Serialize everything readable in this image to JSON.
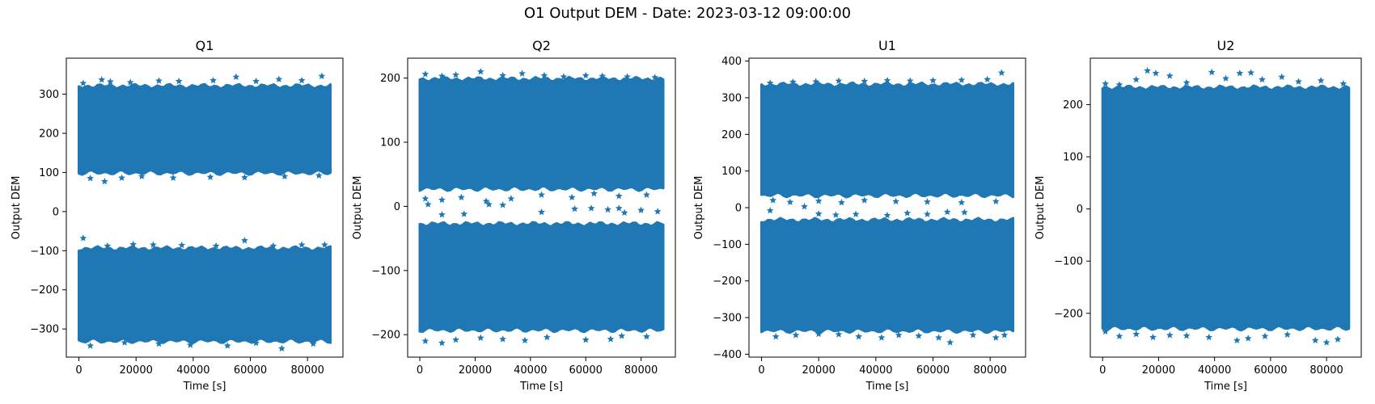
{
  "figure": {
    "suptitle": "O1 Output DEM - Date: 2023-03-12 09:00:00",
    "marker_color": "#1f77b4",
    "marker": "star"
  },
  "chart_data": [
    {
      "type": "scatter",
      "title": "Q1",
      "xlabel": "Time [s]",
      "ylabel": "Output DEM",
      "xlim": [
        -4400,
        92400
      ],
      "ylim": [
        -372,
        392
      ],
      "xticks": [
        0,
        20000,
        40000,
        60000,
        80000
      ],
      "xtick_labels": [
        "0",
        "20000",
        "40000",
        "60000",
        "80000"
      ],
      "yticks": [
        -300,
        -200,
        -100,
        0,
        100,
        200,
        300
      ],
      "ytick_labels": [
        "−300",
        "−200",
        "−100",
        "0",
        "100",
        "200",
        "300"
      ],
      "x_range": [
        0,
        88000
      ],
      "bands": [
        {
          "x_from": 0,
          "x_to": 88000,
          "y_low": 100,
          "y_high": 320
        },
        {
          "x_from": 0,
          "x_to": 88000,
          "y_low": -330,
          "y_high": -95
        }
      ],
      "outliers": [
        [
          1500,
          328
        ],
        [
          8000,
          337
        ],
        [
          11000,
          332
        ],
        [
          18000,
          330
        ],
        [
          28000,
          334
        ],
        [
          35000,
          333
        ],
        [
          47000,
          335
        ],
        [
          55000,
          344
        ],
        [
          62000,
          333
        ],
        [
          70000,
          338
        ],
        [
          78000,
          335
        ],
        [
          85000,
          346
        ],
        [
          4000,
          85
        ],
        [
          9000,
          77
        ],
        [
          15000,
          86
        ],
        [
          22000,
          90
        ],
        [
          33000,
          86
        ],
        [
          46000,
          88
        ],
        [
          58000,
          87
        ],
        [
          72000,
          90
        ],
        [
          84000,
          92
        ],
        [
          1500,
          -68
        ],
        [
          10000,
          -88
        ],
        [
          19000,
          -84
        ],
        [
          26000,
          -85
        ],
        [
          36000,
          -86
        ],
        [
          48000,
          -88
        ],
        [
          58000,
          -74
        ],
        [
          68000,
          -88
        ],
        [
          78000,
          -85
        ],
        [
          86000,
          -85
        ],
        [
          4000,
          -343
        ],
        [
          16000,
          -335
        ],
        [
          28000,
          -338
        ],
        [
          39000,
          -341
        ],
        [
          52000,
          -343
        ],
        [
          62000,
          -336
        ],
        [
          71000,
          -350
        ],
        [
          82000,
          -338
        ]
      ]
    },
    {
      "type": "scatter",
      "title": "Q2",
      "xlabel": "Time [s]",
      "ylabel": "Output DEM",
      "xlim": [
        -4400,
        92400
      ],
      "ylim": [
        -235,
        231
      ],
      "xticks": [
        0,
        20000,
        40000,
        60000,
        80000
      ],
      "xtick_labels": [
        "0",
        "20000",
        "40000",
        "60000",
        "80000"
      ],
      "yticks": [
        -200,
        -100,
        0,
        100,
        200
      ],
      "ytick_labels": [
        "−200",
        "−100",
        "0",
        "100",
        "200"
      ],
      "x_range": [
        0,
        88000
      ],
      "bands": [
        {
          "x_from": 0,
          "x_to": 88000,
          "y_low": 28,
          "y_high": 198
        },
        {
          "x_from": 0,
          "x_to": 88000,
          "y_low": -192,
          "y_high": -28
        }
      ],
      "outliers": [
        [
          2000,
          206
        ],
        [
          8000,
          203
        ],
        [
          13000,
          205
        ],
        [
          22000,
          210
        ],
        [
          30000,
          204
        ],
        [
          37000,
          207
        ],
        [
          45000,
          204
        ],
        [
          52000,
          202
        ],
        [
          60000,
          204
        ],
        [
          66000,
          203
        ],
        [
          75000,
          202
        ],
        [
          85000,
          201
        ],
        [
          2000,
          12
        ],
        [
          8000,
          10
        ],
        [
          15000,
          14
        ],
        [
          24000,
          8
        ],
        [
          33000,
          12
        ],
        [
          44000,
          18
        ],
        [
          55000,
          14
        ],
        [
          63000,
          20
        ],
        [
          72000,
          16
        ],
        [
          82000,
          18
        ],
        [
          3000,
          3
        ],
        [
          8000,
          -13
        ],
        [
          16000,
          -12
        ],
        [
          25000,
          3
        ],
        [
          30000,
          2
        ],
        [
          44000,
          -9
        ],
        [
          56000,
          -4
        ],
        [
          62000,
          -3
        ],
        [
          68000,
          -5
        ],
        [
          72000,
          -3
        ],
        [
          74000,
          -10
        ],
        [
          80000,
          -6
        ],
        [
          86000,
          -8
        ],
        [
          2000,
          -210
        ],
        [
          8000,
          -213
        ],
        [
          13000,
          -208
        ],
        [
          22000,
          -205
        ],
        [
          30000,
          -207
        ],
        [
          38000,
          -209
        ],
        [
          46000,
          -204
        ],
        [
          60000,
          -208
        ],
        [
          69000,
          -207
        ],
        [
          73000,
          -202
        ],
        [
          82000,
          -203
        ]
      ]
    },
    {
      "type": "scatter",
      "title": "U1",
      "xlabel": "Time [s]",
      "ylabel": "Output DEM",
      "xlim": [
        -4400,
        92400
      ],
      "ylim": [
        -408,
        408
      ],
      "xticks": [
        0,
        20000,
        40000,
        60000,
        80000
      ],
      "xtick_labels": [
        "0",
        "20000",
        "40000",
        "60000",
        "80000"
      ],
      "yticks": [
        -400,
        -300,
        -200,
        -100,
        0,
        100,
        200,
        300,
        400
      ],
      "ytick_labels": [
        "−400",
        "−300",
        "−200",
        "−100",
        "0",
        "100",
        "200",
        "300",
        "400"
      ],
      "x_range": [
        0,
        88000
      ],
      "bands": [
        {
          "x_from": 0,
          "x_to": 88000,
          "y_low": 35,
          "y_high": 335
        },
        {
          "x_from": 0,
          "x_to": 88000,
          "y_low": -335,
          "y_high": -35
        }
      ],
      "outliers": [
        [
          3000,
          340
        ],
        [
          11000,
          343
        ],
        [
          19000,
          344
        ],
        [
          27000,
          346
        ],
        [
          36000,
          345
        ],
        [
          44000,
          347
        ],
        [
          52000,
          346
        ],
        [
          60000,
          347
        ],
        [
          70000,
          348
        ],
        [
          79000,
          350
        ],
        [
          84000,
          368
        ],
        [
          4000,
          20
        ],
        [
          10000,
          15
        ],
        [
          20000,
          18
        ],
        [
          28000,
          14
        ],
        [
          36000,
          20
        ],
        [
          47000,
          17
        ],
        [
          58000,
          16
        ],
        [
          70000,
          14
        ],
        [
          82000,
          17
        ],
        [
          3000,
          -8
        ],
        [
          15000,
          3
        ],
        [
          20000,
          -17
        ],
        [
          26000,
          -20
        ],
        [
          33000,
          -18
        ],
        [
          44000,
          -21
        ],
        [
          51000,
          -15
        ],
        [
          58000,
          -18
        ],
        [
          65000,
          -12
        ],
        [
          71000,
          -13
        ],
        [
          5000,
          -352
        ],
        [
          12000,
          -348
        ],
        [
          20000,
          -345
        ],
        [
          27000,
          -346
        ],
        [
          34000,
          -352
        ],
        [
          42000,
          -355
        ],
        [
          48000,
          -348
        ],
        [
          55000,
          -350
        ],
        [
          62000,
          -355
        ],
        [
          66000,
          -368
        ],
        [
          74000,
          -348
        ],
        [
          82000,
          -355
        ],
        [
          85000,
          -348
        ]
      ]
    },
    {
      "type": "scatter",
      "title": "U2",
      "xlabel": "Time [s]",
      "ylabel": "Output DEM",
      "xlim": [
        -4400,
        92400
      ],
      "ylim": [
        -284,
        289
      ],
      "xticks": [
        0,
        20000,
        40000,
        60000,
        80000
      ],
      "xtick_labels": [
        "0",
        "20000",
        "40000",
        "60000",
        "80000"
      ],
      "yticks": [
        -200,
        -100,
        0,
        100,
        200
      ],
      "ytick_labels": [
        "−200",
        "−100",
        "0",
        "100",
        "200"
      ],
      "x_range": [
        0,
        88000
      ],
      "bands": [
        {
          "x_from": 0,
          "x_to": 88000,
          "y_low": -228,
          "y_high": 232
        }
      ],
      "outliers": [
        [
          1000,
          240
        ],
        [
          6000,
          238
        ],
        [
          12000,
          248
        ],
        [
          16000,
          265
        ],
        [
          19000,
          260
        ],
        [
          24000,
          255
        ],
        [
          30000,
          242
        ],
        [
          39000,
          262
        ],
        [
          44000,
          250
        ],
        [
          49000,
          260
        ],
        [
          53000,
          261
        ],
        [
          57000,
          248
        ],
        [
          64000,
          253
        ],
        [
          70000,
          244
        ],
        [
          78000,
          246
        ],
        [
          86000,
          240
        ],
        [
          1000,
          -235
        ],
        [
          6000,
          -244
        ],
        [
          12000,
          -240
        ],
        [
          18000,
          -246
        ],
        [
          24000,
          -242
        ],
        [
          30000,
          -243
        ],
        [
          38000,
          -246
        ],
        [
          48000,
          -252
        ],
        [
          52000,
          -248
        ],
        [
          58000,
          -244
        ],
        [
          66000,
          -241
        ],
        [
          76000,
          -252
        ],
        [
          80000,
          -256
        ],
        [
          84000,
          -250
        ]
      ]
    }
  ]
}
